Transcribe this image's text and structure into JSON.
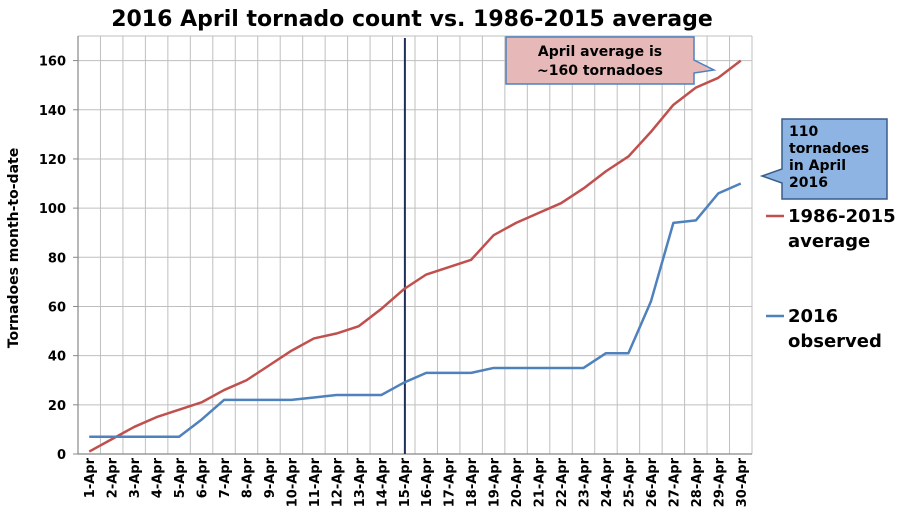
{
  "chart_data": {
    "type": "line",
    "title": "2016 April tornado count vs. 1986-2015 average",
    "ylabel": "Tornadoes month-to-date",
    "xlabel": "",
    "ylim": [
      0,
      170
    ],
    "yticks": [
      0,
      20,
      40,
      60,
      80,
      100,
      120,
      140,
      160
    ],
    "grid": true,
    "categories": [
      "1-Apr",
      "2-Apr",
      "3-Apr",
      "4-Apr",
      "5-Apr",
      "6-Apr",
      "7-Apr",
      "8-Apr",
      "9-Apr",
      "10-Apr",
      "11-Apr",
      "12-Apr",
      "13-Apr",
      "14-Apr",
      "15-Apr",
      "16-Apr",
      "17-Apr",
      "18-Apr",
      "19-Apr",
      "20-Apr",
      "21-Apr",
      "22-Apr",
      "23-Apr",
      "24-Apr",
      "25-Apr",
      "26-Apr",
      "27-Apr",
      "28-Apr",
      "29-Apr",
      "30-Apr"
    ],
    "series": [
      {
        "name": "1986-2015 average",
        "color": "#c0504d",
        "values": [
          1,
          6,
          11,
          15,
          18,
          21,
          26,
          30,
          36,
          42,
          47,
          49,
          52,
          59,
          67,
          73,
          76,
          79,
          89,
          94,
          98,
          102,
          108,
          115,
          121,
          131,
          142,
          149,
          153,
          160
        ]
      },
      {
        "name": "2016 observed",
        "color": "#4f81bd",
        "values": [
          7,
          7,
          7,
          7,
          7,
          14,
          22,
          22,
          22,
          22,
          23,
          24,
          24,
          24,
          29,
          33,
          33,
          33,
          35,
          35,
          35,
          35,
          35,
          41,
          41,
          62,
          94,
          95,
          106,
          110
        ]
      }
    ],
    "vertical_marker": "15-Apr",
    "legend": [
      {
        "label_line1": "1986-2015",
        "label_line2": "average",
        "color": "#c0504d"
      },
      {
        "label_line1": "2016",
        "label_line2": "observed",
        "color": "#4f81bd"
      }
    ],
    "annotations": [
      {
        "lines": [
          "April average is",
          "~160 tornadoes"
        ],
        "fill": "#e6b9b8",
        "stroke": "#4f81bd"
      },
      {
        "lines": [
          "110",
          "tornadoes",
          "in April",
          "2016"
        ],
        "fill": "#8db4e2",
        "stroke": "#385d8a"
      }
    ]
  }
}
